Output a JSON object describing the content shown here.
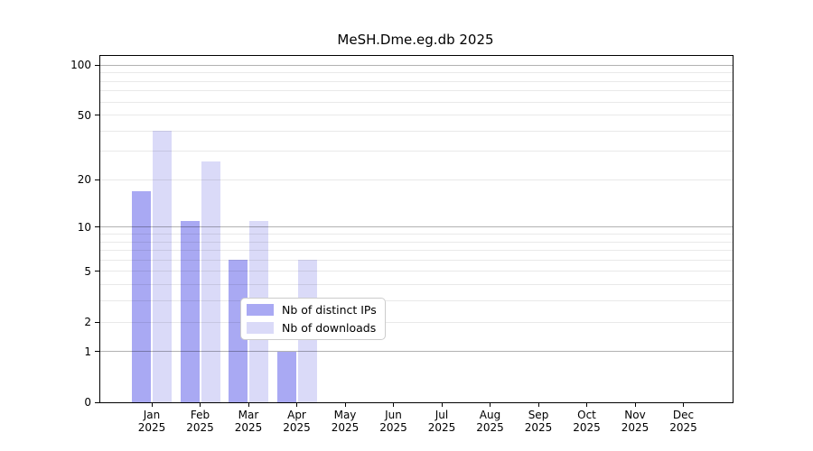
{
  "figure_title": "MeSH.Dme.eg.db 2025",
  "chart_data": {
    "type": "bar",
    "title": "MeSH.Dme.eg.db 2025",
    "months": [
      "Jan",
      "Feb",
      "Mar",
      "Apr",
      "May",
      "Jun",
      "Jul",
      "Aug",
      "Sep",
      "Oct",
      "Nov",
      "Dec"
    ],
    "year": "2025",
    "series": [
      {
        "name": "Nb of distinct IPs",
        "color": "#a9a9f3",
        "values": [
          17,
          11,
          6,
          1,
          0,
          0,
          0,
          0,
          0,
          0,
          0,
          0
        ]
      },
      {
        "name": "Nb of downloads",
        "color": "#dadaf8",
        "values": [
          40,
          26,
          11,
          6,
          0,
          0,
          0,
          0,
          0,
          0,
          0,
          0
        ]
      }
    ],
    "yscale": "log1p",
    "ylim": [
      0,
      113.5
    ],
    "yticks": [
      0,
      1,
      2,
      5,
      10,
      20,
      50,
      100
    ],
    "major_gridlines": [
      1,
      10,
      100
    ],
    "minor_gridlines": [
      2,
      3,
      4,
      5,
      6,
      7,
      8,
      9,
      20,
      30,
      40,
      50,
      60,
      70,
      80,
      90
    ],
    "grid": true,
    "legend_position": "lower center",
    "legend_entries": [
      "Nb of distinct IPs",
      "Nb of downloads"
    ]
  },
  "colors": {
    "bar_distinct_ips": "#a9a9f3",
    "bar_downloads": "#dadaf8",
    "major_gridline": "#b3b3b3",
    "minor_gridline": "#ebebeb",
    "axis": "#000000",
    "legend_border": "#cccccc",
    "background": "#ffffff"
  }
}
